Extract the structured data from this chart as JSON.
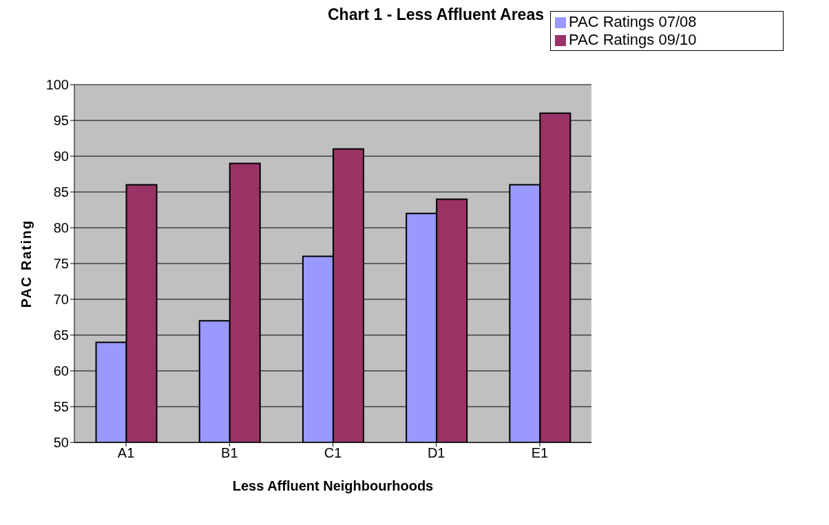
{
  "chart_data": {
    "type": "bar",
    "title": "Chart 1 - Less Affluent Areas",
    "xlabel": "Less Affluent Neighbourhoods",
    "ylabel": "PAC Rating",
    "categories": [
      "A1",
      "B1",
      "C1",
      "D1",
      "E1"
    ],
    "series": [
      {
        "name": "PAC Ratings 07/08",
        "color": "#9999ff",
        "values": [
          64,
          67,
          76,
          82,
          86
        ]
      },
      {
        "name": "PAC Ratings 09/10",
        "color": "#993366",
        "values": [
          86,
          89,
          91,
          84,
          96
        ]
      }
    ],
    "ylim": [
      50,
      100
    ],
    "yticks": [
      50,
      55,
      60,
      65,
      70,
      75,
      80,
      85,
      90,
      95,
      100
    ],
    "grid": "y",
    "legend": "top right"
  }
}
